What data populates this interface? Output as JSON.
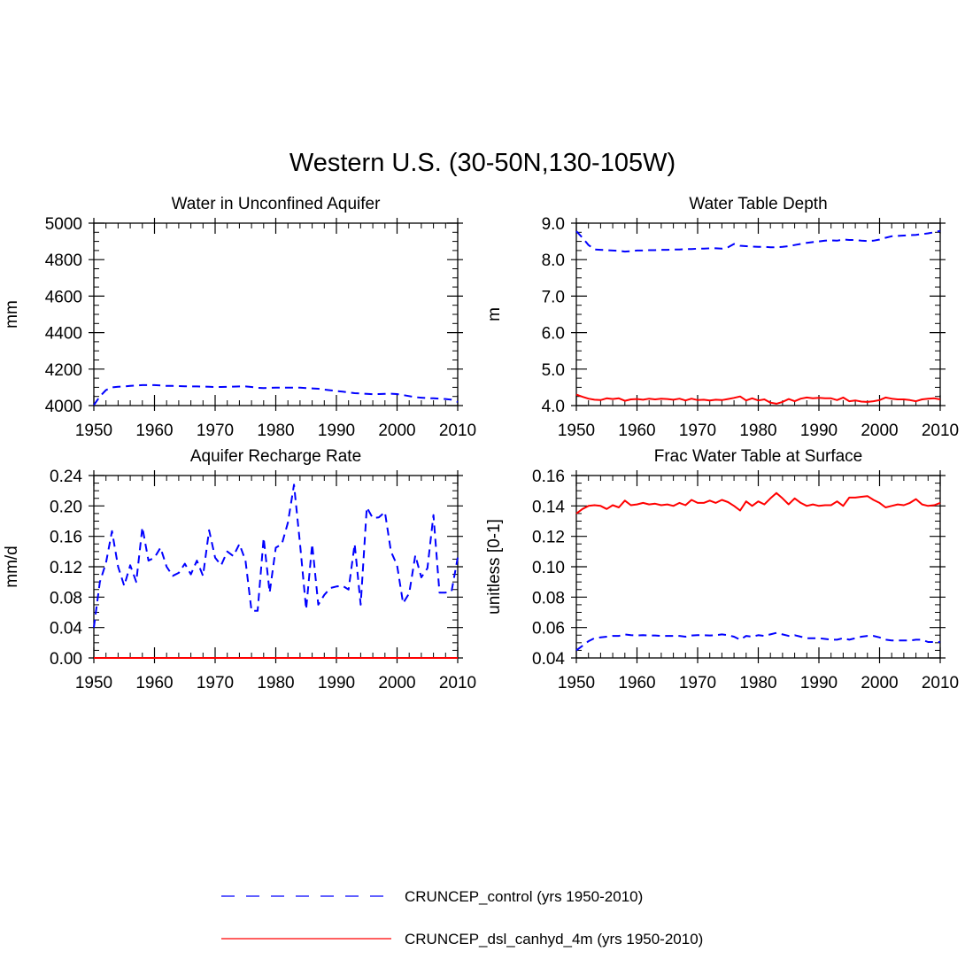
{
  "title": "Western U.S. (30-50N,130-105W)",
  "legend": [
    {
      "label": "CRUNCEP_control (yrs 1950-2010)",
      "color": "#0000ff",
      "dash": "dashed"
    },
    {
      "label": "CRUNCEP_dsl_canhyd_4m (yrs 1950-2010)",
      "color": "#ff0000",
      "dash": "solid"
    }
  ],
  "chart_data": [
    {
      "type": "line",
      "title": "Water in Unconfined Aquifer",
      "ylabel": "mm",
      "xlim": [
        1950,
        2010
      ],
      "ylim": [
        4000,
        5000
      ],
      "xticks": [
        "1950",
        "1960",
        "1970",
        "1980",
        "1990",
        "2000",
        "2010"
      ],
      "yticks": [
        "4000",
        "4200",
        "4400",
        "4600",
        "4800",
        "5000"
      ],
      "x_start": 1950,
      "series": [
        {
          "color": "#0000ff",
          "dash": "dashed",
          "values": [
            4003,
            4050,
            4085,
            4100,
            4103,
            4105,
            4108,
            4110,
            4112,
            4112,
            4112,
            4110,
            4108,
            4108,
            4107,
            4106,
            4105,
            4105,
            4104,
            4103,
            4102,
            4102,
            4103,
            4104,
            4105,
            4105,
            4102,
            4097,
            4096,
            4097,
            4098,
            4098,
            4098,
            4098,
            4098,
            4096,
            4094,
            4092,
            4088,
            4084,
            4080,
            4076,
            4072,
            4068,
            4066,
            4064,
            4062,
            4063,
            4064,
            4065,
            4063,
            4058,
            4052,
            4046,
            4043,
            4041,
            4040,
            4038,
            4036,
            4032,
            4020
          ]
        }
      ]
    },
    {
      "type": "line",
      "title": "Water Table Depth",
      "ylabel": "m",
      "xlim": [
        1950,
        2010
      ],
      "ylim": [
        4.0,
        9.0
      ],
      "xticks": [
        "1950",
        "1960",
        "1970",
        "1980",
        "1990",
        "2000",
        "2010"
      ],
      "yticks": [
        "4.0",
        "5.0",
        "6.0",
        "7.0",
        "8.0",
        "9.0"
      ],
      "x_start": 1950,
      "series": [
        {
          "color": "#0000ff",
          "dash": "dashed",
          "values": [
            8.78,
            8.6,
            8.4,
            8.28,
            8.27,
            8.26,
            8.25,
            8.24,
            8.22,
            8.23,
            8.25,
            8.25,
            8.26,
            8.26,
            8.27,
            8.27,
            8.28,
            8.28,
            8.29,
            8.29,
            8.3,
            8.3,
            8.31,
            8.31,
            8.3,
            8.34,
            8.43,
            8.38,
            8.37,
            8.36,
            8.35,
            8.35,
            8.34,
            8.34,
            8.35,
            8.37,
            8.4,
            8.43,
            8.46,
            8.48,
            8.5,
            8.52,
            8.53,
            8.52,
            8.55,
            8.54,
            8.54,
            8.52,
            8.51,
            8.52,
            8.55,
            8.6,
            8.64,
            8.65,
            8.66,
            8.67,
            8.68,
            8.7,
            8.72,
            8.75,
            8.79
          ]
        },
        {
          "color": "#ff0000",
          "dash": "solid",
          "values": [
            4.3,
            4.24,
            4.19,
            4.16,
            4.15,
            4.2,
            4.18,
            4.2,
            4.13,
            4.17,
            4.18,
            4.16,
            4.19,
            4.17,
            4.19,
            4.18,
            4.16,
            4.19,
            4.14,
            4.19,
            4.15,
            4.16,
            4.14,
            4.16,
            4.15,
            4.18,
            4.21,
            4.25,
            4.14,
            4.2,
            4.14,
            4.17,
            4.08,
            4.05,
            4.1,
            4.18,
            4.12,
            4.19,
            4.22,
            4.2,
            4.21,
            4.2,
            4.2,
            4.15,
            4.22,
            4.12,
            4.14,
            4.11,
            4.1,
            4.12,
            4.15,
            4.22,
            4.19,
            4.17,
            4.17,
            4.15,
            4.12,
            4.17,
            4.19,
            4.2,
            4.17
          ]
        }
      ]
    },
    {
      "type": "line",
      "title": "Aquifer Recharge Rate",
      "ylabel": "mm/d",
      "xlim": [
        1950,
        2010
      ],
      "ylim": [
        0.0,
        0.24
      ],
      "xticks": [
        "1950",
        "1960",
        "1970",
        "1980",
        "1990",
        "2000",
        "2010"
      ],
      "yticks": [
        "0.00",
        "0.04",
        "0.08",
        "0.12",
        "0.16",
        "0.20",
        "0.24"
      ],
      "x_start": 1950,
      "series": [
        {
          "color": "#0000ff",
          "dash": "dashed",
          "values": [
            0.04,
            0.1,
            0.125,
            0.167,
            0.12,
            0.095,
            0.122,
            0.1,
            0.172,
            0.128,
            0.132,
            0.145,
            0.12,
            0.108,
            0.112,
            0.124,
            0.11,
            0.128,
            0.108,
            0.168,
            0.132,
            0.122,
            0.14,
            0.134,
            0.15,
            0.128,
            0.062,
            0.062,
            0.158,
            0.086,
            0.145,
            0.15,
            0.178,
            0.228,
            0.15,
            0.064,
            0.15,
            0.07,
            0.083,
            0.092,
            0.094,
            0.095,
            0.09,
            0.15,
            0.07,
            0.198,
            0.184,
            0.185,
            0.192,
            0.14,
            0.122,
            0.072,
            0.085,
            0.135,
            0.106,
            0.118,
            0.188,
            0.086,
            0.086,
            0.088,
            0.132
          ]
        },
        {
          "color": "#ff0000",
          "dash": "solid",
          "values": [
            0.0,
            0.0,
            0.0,
            0.0,
            0.0,
            0.0,
            0.0,
            0.0,
            0.0,
            0.0,
            0.0,
            0.0,
            0.0,
            0.0,
            0.0,
            0.0,
            0.0,
            0.0,
            0.0,
            0.0,
            0.0,
            0.0,
            0.0,
            0.0,
            0.0,
            0.0,
            0.0,
            0.0,
            0.0,
            0.0,
            0.0,
            0.0,
            0.0,
            0.0,
            0.0,
            0.0,
            0.0,
            0.0,
            0.0,
            0.0,
            0.0,
            0.0,
            0.0,
            0.0,
            0.0,
            0.0,
            0.0,
            0.0,
            0.0,
            0.0,
            0.0,
            0.0,
            0.0,
            0.0,
            0.0,
            0.0,
            0.0,
            0.0,
            0.0,
            0.0,
            0.0
          ]
        }
      ]
    },
    {
      "type": "line",
      "title": "Frac Water Table at Surface",
      "ylabel": "unitless [0-1]",
      "xlim": [
        1950,
        2010
      ],
      "ylim": [
        0.04,
        0.16
      ],
      "xticks": [
        "1950",
        "1960",
        "1970",
        "1980",
        "1990",
        "2000",
        "2010"
      ],
      "yticks": [
        "0.04",
        "0.06",
        "0.08",
        "0.10",
        "0.12",
        "0.14",
        "0.16"
      ],
      "x_start": 1950,
      "series": [
        {
          "color": "#0000ff",
          "dash": "dashed",
          "values": [
            0.045,
            0.048,
            0.051,
            0.053,
            0.0535,
            0.054,
            0.0545,
            0.0545,
            0.0555,
            0.055,
            0.0548,
            0.055,
            0.0548,
            0.0548,
            0.0545,
            0.0545,
            0.0545,
            0.0545,
            0.054,
            0.0548,
            0.055,
            0.055,
            0.0548,
            0.055,
            0.0555,
            0.055,
            0.054,
            0.052,
            0.0545,
            0.054,
            0.055,
            0.0545,
            0.0555,
            0.0565,
            0.0555,
            0.0545,
            0.055,
            0.054,
            0.053,
            0.053,
            0.053,
            0.0525,
            0.052,
            0.052,
            0.053,
            0.052,
            0.053,
            0.054,
            0.0545,
            0.0545,
            0.0535,
            0.052,
            0.0515,
            0.0515,
            0.0515,
            0.0515,
            0.052,
            0.052,
            0.0505,
            0.0505,
            0.0505
          ]
        },
        {
          "color": "#ff0000",
          "dash": "solid",
          "values": [
            0.135,
            0.138,
            0.14,
            0.1405,
            0.14,
            0.138,
            0.1405,
            0.139,
            0.1435,
            0.1405,
            0.141,
            0.142,
            0.141,
            0.1415,
            0.1405,
            0.141,
            0.14,
            0.142,
            0.1405,
            0.144,
            0.142,
            0.142,
            0.1435,
            0.142,
            0.144,
            0.1425,
            0.14,
            0.137,
            0.143,
            0.14,
            0.143,
            0.141,
            0.145,
            0.1485,
            0.145,
            0.141,
            0.145,
            0.142,
            0.14,
            0.141,
            0.14,
            0.1405,
            0.1405,
            0.143,
            0.14,
            0.1455,
            0.1455,
            0.146,
            0.1465,
            0.144,
            0.142,
            0.139,
            0.14,
            0.141,
            0.1405,
            0.142,
            0.1445,
            0.141,
            0.14,
            0.1405,
            0.142
          ]
        }
      ]
    }
  ]
}
